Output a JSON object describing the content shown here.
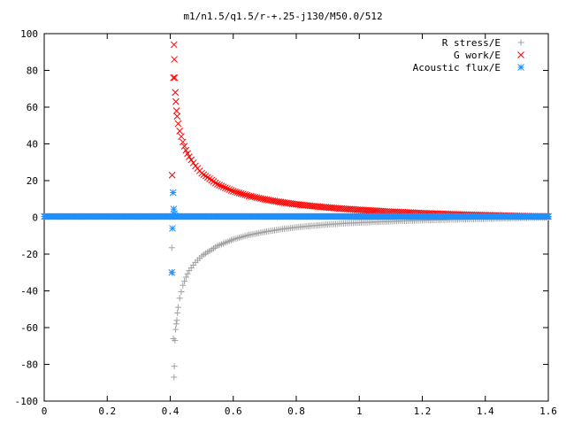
{
  "chart_data": {
    "type": "scatter",
    "title": "m1/n1.5/q1.5/r-+.25-j130/M50.0/512",
    "xlabel": "",
    "ylabel": "",
    "xlim": [
      0,
      1.6
    ],
    "ylim": [
      -100,
      100
    ],
    "x_ticks": [
      "0",
      "0.2",
      "0.4",
      "0.6",
      "0.8",
      "1",
      "1.2",
      "1.4",
      "1.6"
    ],
    "y_ticks": [
      "100",
      "80",
      "60",
      "40",
      "20",
      "0",
      "-20",
      "-40",
      "-60",
      "-80",
      "-100"
    ],
    "grid": false,
    "legend_position": "top-right",
    "series": [
      {
        "name": "R stress/E",
        "marker": "+",
        "color": "#a0a0a0",
        "points": [
          [
            0.405,
            -16.5
          ],
          [
            0.408,
            -30
          ],
          [
            0.41,
            -66
          ],
          [
            0.412,
            -87
          ],
          [
            0.413,
            -81
          ],
          [
            0.415,
            -67
          ],
          [
            0.417,
            -61
          ],
          [
            0.419,
            -58
          ],
          [
            0.421,
            -56
          ],
          [
            0.423,
            -52
          ],
          [
            0.425,
            -49
          ],
          [
            0.43,
            -44
          ],
          [
            0.44,
            -37
          ],
          [
            0.45,
            -32.5
          ],
          [
            0.46,
            -29
          ],
          [
            0.48,
            -24.5
          ],
          [
            0.5,
            -21
          ],
          [
            0.55,
            -15.5
          ],
          [
            0.6,
            -12
          ],
          [
            0.65,
            -9.6
          ],
          [
            0.7,
            -7.9
          ],
          [
            0.75,
            -6.5
          ],
          [
            0.8,
            -5.4
          ],
          [
            0.85,
            -4.6
          ],
          [
            0.9,
            -3.9
          ],
          [
            0.95,
            -3.3
          ],
          [
            1.0,
            -2.9
          ],
          [
            1.05,
            -2.5
          ],
          [
            1.1,
            -2.2
          ],
          [
            1.15,
            -1.9
          ],
          [
            1.2,
            -1.6
          ],
          [
            1.25,
            -1.4
          ],
          [
            1.3,
            -1.2
          ],
          [
            1.35,
            -1.0
          ],
          [
            1.4,
            -0.8
          ],
          [
            1.45,
            -0.6
          ],
          [
            1.5,
            -0.4
          ],
          [
            1.55,
            -0.2
          ],
          [
            1.6,
            0
          ]
        ]
      },
      {
        "name": "G work/E",
        "marker": "x",
        "color": "#ff0000",
        "points": [
          [
            0.406,
            23
          ],
          [
            0.41,
            76
          ],
          [
            0.412,
            94
          ],
          [
            0.413,
            86
          ],
          [
            0.414,
            76
          ],
          [
            0.416,
            68
          ],
          [
            0.418,
            63
          ],
          [
            0.42,
            58
          ],
          [
            0.422,
            55
          ],
          [
            0.425,
            51
          ],
          [
            0.43,
            47
          ],
          [
            0.44,
            41
          ],
          [
            0.45,
            36.5
          ],
          [
            0.46,
            33
          ],
          [
            0.48,
            28
          ],
          [
            0.5,
            24
          ],
          [
            0.55,
            18
          ],
          [
            0.6,
            14.2
          ],
          [
            0.65,
            11.7
          ],
          [
            0.7,
            9.8
          ],
          [
            0.75,
            8.3
          ],
          [
            0.8,
            7.1
          ],
          [
            0.85,
            6.2
          ],
          [
            0.9,
            5.4
          ],
          [
            0.95,
            4.7
          ],
          [
            1.0,
            4.1
          ],
          [
            1.05,
            3.6
          ],
          [
            1.1,
            3.1
          ],
          [
            1.15,
            2.7
          ],
          [
            1.2,
            2.3
          ],
          [
            1.25,
            2.0
          ],
          [
            1.3,
            1.7
          ],
          [
            1.35,
            1.4
          ],
          [
            1.4,
            1.2
          ],
          [
            1.45,
            1.0
          ],
          [
            1.5,
            0.8
          ],
          [
            1.55,
            0.6
          ],
          [
            1.6,
            0.5
          ]
        ]
      },
      {
        "name": "Acoustic flux/E",
        "marker": "*",
        "color": "#1e90ff",
        "points": [
          [
            0.405,
            -30
          ],
          [
            0.407,
            -6
          ],
          [
            0.409,
            13.5
          ],
          [
            0.411,
            4.5
          ],
          [
            0.413,
            2
          ],
          [
            0.415,
            1
          ]
        ],
        "baseline_value": 0.5,
        "baseline_range": [
          0,
          1.6
        ]
      }
    ]
  }
}
